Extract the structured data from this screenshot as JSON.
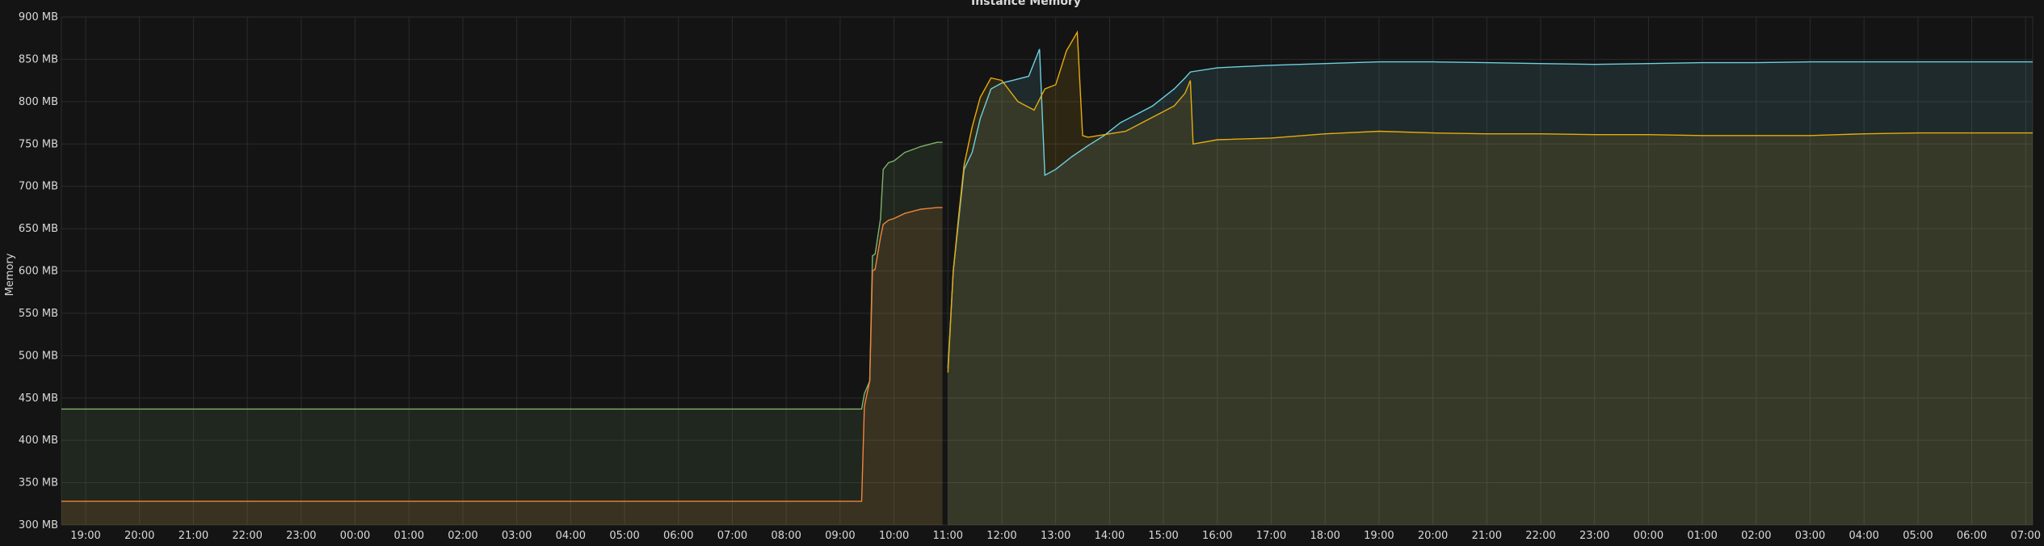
{
  "panel": {
    "title": "Instance Memory"
  },
  "colors": {
    "background": "#141414",
    "grid": "#2b2b2b"
  },
  "chart_data": {
    "type": "area",
    "title": "Instance Memory",
    "xlabel": "",
    "ylabel": "Memory",
    "grid": true,
    "legend": "none",
    "x_domain": [
      18.55,
      31.13
    ],
    "ylim": [
      300,
      900
    ],
    "y_ticks": [
      300,
      350,
      400,
      450,
      500,
      550,
      600,
      650,
      700,
      750,
      800,
      850,
      900
    ],
    "y_tick_labels": [
      "300 MB",
      "350 MB",
      "400 MB",
      "450 MB",
      "500 MB",
      "550 MB",
      "600 MB",
      "650 MB",
      "700 MB",
      "750 MB",
      "800 MB",
      "850 MB",
      "900 MB"
    ],
    "x_ticks": [
      19,
      20,
      21,
      22,
      23,
      24,
      25,
      26,
      27,
      28,
      29,
      30,
      31,
      32,
      33,
      34,
      35,
      36,
      37,
      38,
      39,
      40,
      41,
      42,
      43,
      44,
      45,
      46,
      47,
      48,
      49,
      50,
      51,
      52,
      53,
      54,
      55
    ],
    "x_tick_labels": [
      "19:00",
      "20:00",
      "21:00",
      "22:00",
      "23:00",
      "00:00",
      "01:00",
      "02:00",
      "03:00",
      "04:00",
      "05:00",
      "06:00",
      "07:00",
      "08:00",
      "09:00",
      "10:00",
      "11:00",
      "12:00",
      "13:00",
      "14:00",
      "15:00",
      "16:00",
      "17:00",
      "18:00",
      "19:00",
      "20:00",
      "21:00",
      "22:00",
      "23:00",
      "00:00",
      "01:00",
      "02:00",
      "03:00",
      "04:00",
      "05:00",
      "06:00",
      "07:00"
    ],
    "series": [
      {
        "color": "#7eb26d",
        "x": [
          18.55,
          33.4,
          33.45,
          33.55,
          33.6,
          33.65,
          33.75,
          33.8,
          33.9,
          34.0,
          34.2,
          34.5,
          34.8,
          34.9
        ],
        "y": [
          437,
          437,
          455,
          470,
          618,
          620,
          662,
          720,
          728,
          730,
          740,
          747,
          752,
          752
        ]
      },
      {
        "color": "#ef843c",
        "x": [
          18.55,
          33.4,
          33.45,
          33.55,
          33.6,
          33.65,
          33.75,
          33.8,
          33.9,
          34.0,
          34.2,
          34.5,
          34.8,
          34.9
        ],
        "y": [
          328,
          328,
          440,
          470,
          600,
          602,
          640,
          655,
          660,
          662,
          668,
          673,
          675,
          675
        ]
      },
      {
        "color": "#6ed0e0",
        "x": [
          35.0,
          35.1,
          35.2,
          35.3,
          35.45,
          35.6,
          35.8,
          36.0,
          36.2,
          36.5,
          36.7,
          36.8,
          37.0,
          37.3,
          37.6,
          37.9,
          38.2,
          38.5,
          38.8,
          39.0,
          39.2,
          39.4,
          39.5,
          40.0,
          41.0,
          42.0,
          43.0,
          44.0,
          45.0,
          46.0,
          47.0,
          48.0,
          49.0,
          50.0,
          51.0,
          52.0,
          53.0,
          54.0,
          55.13
        ],
        "y": [
          485,
          600,
          660,
          720,
          740,
          780,
          815,
          822,
          825,
          830,
          862,
          713,
          720,
          735,
          748,
          760,
          775,
          785,
          795,
          805,
          815,
          828,
          835,
          840,
          843,
          845,
          847,
          847,
          846,
          845,
          844,
          845,
          846,
          846,
          847,
          847,
          847,
          847,
          847
        ]
      },
      {
        "color": "#e5ac0e",
        "x": [
          35.0,
          35.1,
          35.2,
          35.3,
          35.45,
          35.6,
          35.8,
          36.0,
          36.3,
          36.6,
          36.8,
          37.0,
          37.2,
          37.4,
          37.5,
          37.6,
          37.8,
          38.0,
          38.3,
          38.6,
          38.9,
          39.2,
          39.4,
          39.5,
          39.55,
          40.0,
          41.0,
          42.0,
          43.0,
          44.0,
          45.0,
          46.0,
          47.0,
          48.0,
          49.0,
          50.0,
          51.0,
          52.0,
          53.0,
          54.0,
          55.13
        ],
        "y": [
          480,
          600,
          665,
          725,
          770,
          805,
          828,
          825,
          800,
          790,
          815,
          820,
          860,
          882,
          760,
          758,
          760,
          762,
          765,
          775,
          785,
          795,
          810,
          825,
          750,
          755,
          757,
          762,
          765,
          763,
          762,
          762,
          761,
          761,
          760,
          760,
          760,
          762,
          763,
          763,
          763
        ]
      }
    ]
  }
}
